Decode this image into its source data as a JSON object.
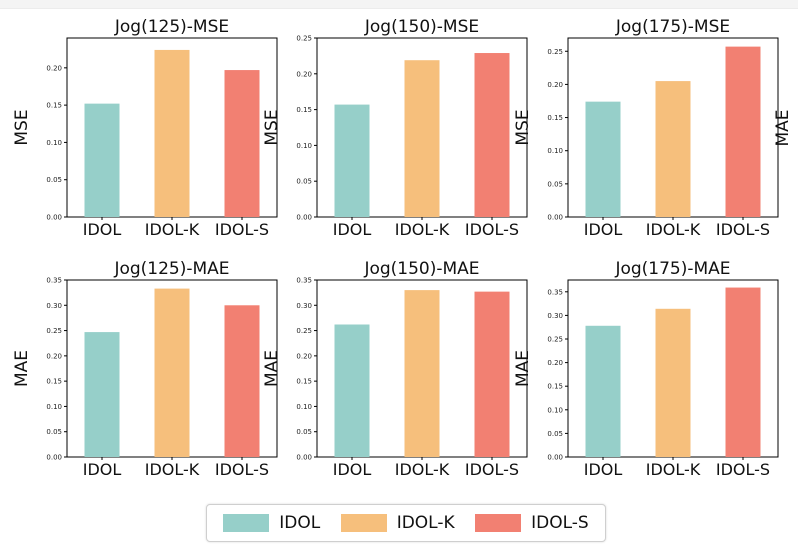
{
  "colors": {
    "IDOL": "#96cfc9",
    "IDOL-K": "#f6bf7c",
    "IDOL-S": "#f28072"
  },
  "legend": [
    {
      "label": "IDOL",
      "color": "#96cfc9"
    },
    {
      "label": "IDOL-K",
      "color": "#f6bf7c"
    },
    {
      "label": "IDOL-S",
      "color": "#f28072"
    }
  ],
  "chart_data": [
    {
      "type": "bar",
      "title": "Jog(125)-MSE",
      "ylabel": "MSE",
      "categories": [
        "IDOL",
        "IDOL-K",
        "IDOL-S"
      ],
      "values": [
        0.152,
        0.224,
        0.197
      ],
      "ylim": [
        0,
        0.24
      ],
      "yticks": [
        "0.00",
        "0.05",
        "0.10",
        "0.15",
        "0.20"
      ]
    },
    {
      "type": "bar",
      "title": "Jog(150)-MSE",
      "ylabel": "MSE",
      "categories": [
        "IDOL",
        "IDOL-K",
        "IDOL-S"
      ],
      "values": [
        0.157,
        0.219,
        0.229
      ],
      "ylim": [
        0,
        0.25
      ],
      "yticks": [
        "0.00",
        "0.05",
        "0.10",
        "0.15",
        "0.20",
        "0.25"
      ]
    },
    {
      "type": "bar",
      "title": "Jog(175)-MSE",
      "ylabel": "MSE",
      "categories": [
        "IDOL",
        "IDOL-K",
        "IDOL-S"
      ],
      "values": [
        0.174,
        0.205,
        0.257
      ],
      "ylim": [
        0,
        0.27
      ],
      "yticks": [
        "0.00",
        "0.05",
        "0.10",
        "0.15",
        "0.20",
        "0.25"
      ]
    },
    {
      "type": "bar",
      "title": "Jog(125)-MAE",
      "ylabel": "MAE",
      "categories": [
        "IDOL",
        "IDOL-K",
        "IDOL-S"
      ],
      "values": [
        0.247,
        0.333,
        0.3
      ],
      "ylim": [
        0,
        0.35
      ],
      "yticks": [
        "0.00",
        "0.05",
        "0.10",
        "0.15",
        "0.20",
        "0.25",
        "0.30",
        "0.35"
      ]
    },
    {
      "type": "bar",
      "title": "Jog(150)-MAE",
      "ylabel": "MAE",
      "categories": [
        "IDOL",
        "IDOL-K",
        "IDOL-S"
      ],
      "values": [
        0.262,
        0.33,
        0.327
      ],
      "ylim": [
        0,
        0.35
      ],
      "yticks": [
        "0.00",
        "0.05",
        "0.10",
        "0.15",
        "0.20",
        "0.25",
        "0.30",
        "0.35"
      ]
    },
    {
      "type": "bar",
      "title": "Jog(175)-MAE",
      "ylabel": "MAE",
      "categories": [
        "IDOL",
        "IDOL-K",
        "IDOL-S"
      ],
      "values": [
        0.278,
        0.314,
        0.359
      ],
      "ylim": [
        0,
        0.375
      ],
      "yticks": [
        "0.00",
        "0.05",
        "0.10",
        "0.15",
        "0.20",
        "0.25",
        "0.30",
        "0.35"
      ]
    }
  ],
  "cutoff_ylabel": "MAE"
}
